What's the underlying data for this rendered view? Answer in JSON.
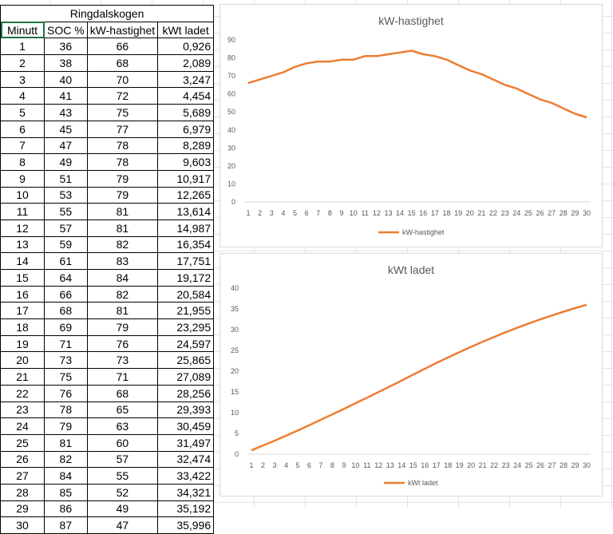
{
  "table": {
    "title": "Ringdalskogen",
    "headers": [
      "Minutt",
      "SOC %",
      "kW-hastighet",
      "kWt ladet"
    ],
    "rows": [
      [
        "1",
        "36",
        "66",
        "0,926"
      ],
      [
        "2",
        "38",
        "68",
        "2,089"
      ],
      [
        "3",
        "40",
        "70",
        "3,247"
      ],
      [
        "4",
        "41",
        "72",
        "4,454"
      ],
      [
        "5",
        "43",
        "75",
        "5,689"
      ],
      [
        "6",
        "45",
        "77",
        "6,979"
      ],
      [
        "7",
        "47",
        "78",
        "8,289"
      ],
      [
        "8",
        "49",
        "78",
        "9,603"
      ],
      [
        "9",
        "51",
        "79",
        "10,917"
      ],
      [
        "10",
        "53",
        "79",
        "12,265"
      ],
      [
        "11",
        "55",
        "81",
        "13,614"
      ],
      [
        "12",
        "57",
        "81",
        "14,987"
      ],
      [
        "13",
        "59",
        "82",
        "16,354"
      ],
      [
        "14",
        "61",
        "83",
        "17,751"
      ],
      [
        "15",
        "64",
        "84",
        "19,172"
      ],
      [
        "16",
        "66",
        "82",
        "20,584"
      ],
      [
        "17",
        "68",
        "81",
        "21,955"
      ],
      [
        "18",
        "69",
        "79",
        "23,295"
      ],
      [
        "19",
        "71",
        "76",
        "24,597"
      ],
      [
        "20",
        "73",
        "73",
        "25,865"
      ],
      [
        "21",
        "75",
        "71",
        "27,089"
      ],
      [
        "22",
        "76",
        "68",
        "28,256"
      ],
      [
        "23",
        "78",
        "65",
        "29,393"
      ],
      [
        "24",
        "79",
        "63",
        "30,459"
      ],
      [
        "25",
        "81",
        "60",
        "31,497"
      ],
      [
        "26",
        "82",
        "57",
        "32,474"
      ],
      [
        "27",
        "84",
        "55",
        "33,422"
      ],
      [
        "28",
        "85",
        "52",
        "34,321"
      ],
      [
        "29",
        "86",
        "49",
        "35,192"
      ],
      [
        "30",
        "87",
        "47",
        "35,996"
      ]
    ]
  },
  "chart_data": [
    {
      "type": "line",
      "title": "kW-hastighet",
      "x": [
        1,
        2,
        3,
        4,
        5,
        6,
        7,
        8,
        9,
        10,
        11,
        12,
        13,
        14,
        15,
        16,
        17,
        18,
        19,
        20,
        21,
        22,
        23,
        24,
        25,
        26,
        27,
        28,
        29,
        30
      ],
      "series": [
        {
          "name": "kW-hastighet",
          "color": "#ed7d31",
          "values": [
            66,
            68,
            70,
            72,
            75,
            77,
            78,
            78,
            79,
            79,
            81,
            81,
            82,
            83,
            84,
            82,
            81,
            79,
            76,
            73,
            71,
            68,
            65,
            63,
            60,
            57,
            55,
            52,
            49,
            47
          ]
        }
      ],
      "ylim": [
        0,
        90
      ],
      "yticks": [
        0,
        10,
        20,
        30,
        40,
        50,
        60,
        70,
        80,
        90
      ],
      "legend": "bottom",
      "grid": false
    },
    {
      "type": "line",
      "title": "kWt ladet",
      "x": [
        1,
        2,
        3,
        4,
        5,
        6,
        7,
        8,
        9,
        10,
        11,
        12,
        13,
        14,
        15,
        16,
        17,
        18,
        19,
        20,
        21,
        22,
        23,
        24,
        25,
        26,
        27,
        28,
        29,
        30
      ],
      "series": [
        {
          "name": "kWt ladet",
          "color": "#ed7d31",
          "values": [
            0.926,
            2.089,
            3.247,
            4.454,
            5.689,
            6.979,
            8.289,
            9.603,
            10.917,
            12.265,
            13.614,
            14.987,
            16.354,
            17.751,
            19.172,
            20.584,
            21.955,
            23.295,
            24.597,
            25.865,
            27.089,
            28.256,
            29.393,
            30.459,
            31.497,
            32.474,
            33.422,
            34.321,
            35.192,
            35.996
          ]
        }
      ],
      "ylim": [
        0,
        40
      ],
      "yticks": [
        0,
        5,
        10,
        15,
        20,
        25,
        30,
        35,
        40
      ],
      "legend": "bottom",
      "grid": false
    }
  ]
}
